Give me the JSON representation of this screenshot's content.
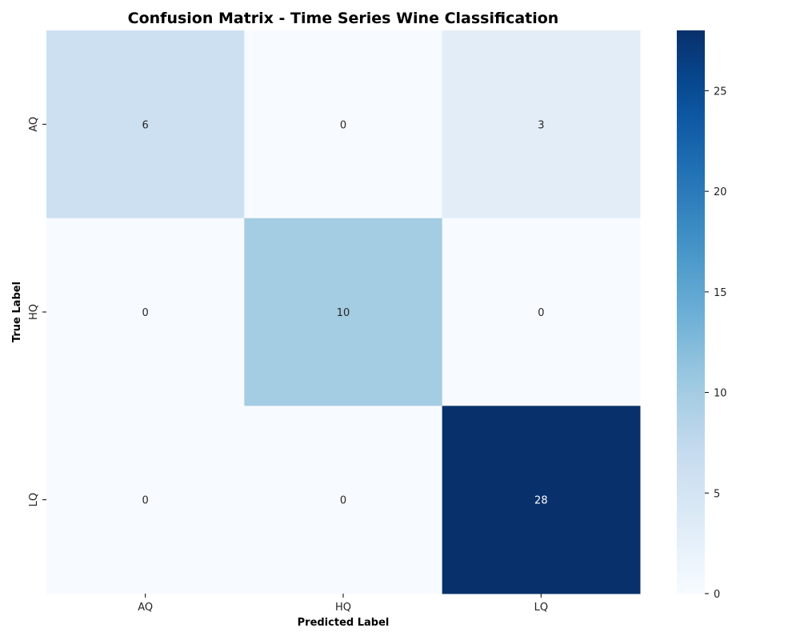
{
  "chart_data": {
    "type": "heatmap",
    "title": "Confusion Matrix - Time Series Wine Classification",
    "xlabel": "Predicted Label",
    "ylabel": "True Label",
    "x_categories": [
      "AQ",
      "HQ",
      "LQ"
    ],
    "y_categories": [
      "AQ",
      "HQ",
      "LQ"
    ],
    "values": [
      [
        6,
        0,
        3
      ],
      [
        0,
        10,
        0
      ],
      [
        0,
        0,
        28
      ]
    ],
    "colorbar": {
      "colormap": "Blues",
      "range": [
        0,
        28
      ],
      "ticks": [
        0,
        5,
        10,
        15,
        20,
        25
      ]
    }
  }
}
